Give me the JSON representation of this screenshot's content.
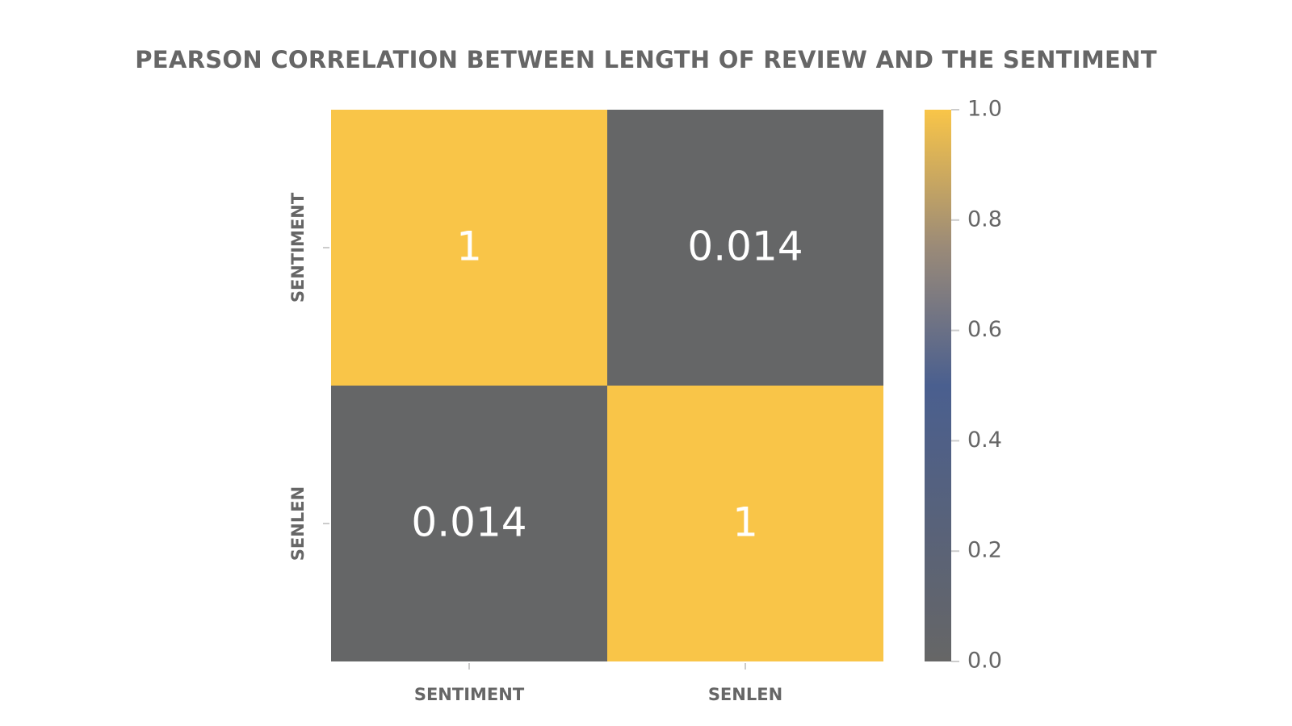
{
  "chart_data": {
    "type": "heatmap",
    "title": "PEARSON CORRELATION BETWEEN LENGTH OF REVIEW AND THE SENTIMENT",
    "x_categories": [
      "SENTIMENT",
      "SENLEN"
    ],
    "y_categories": [
      "SENTIMENT",
      "SENLEN"
    ],
    "values": [
      [
        1,
        0.014
      ],
      [
        0.014,
        1
      ]
    ],
    "cell_labels": [
      [
        "1",
        "0.014"
      ],
      [
        "0.014",
        "1"
      ]
    ],
    "colorbar": {
      "range": [
        0.0,
        1.0
      ],
      "ticks": [
        0.0,
        0.2,
        0.4,
        0.6,
        0.8,
        1.0
      ],
      "tick_labels": [
        "0.0",
        "0.2",
        "0.4",
        "0.6",
        "0.8",
        "1.0"
      ],
      "position": "right"
    },
    "colors": {
      "low": "#666666",
      "mid": "#4a5f8f",
      "high": "#f9c548",
      "text": "#666666",
      "cell_text": "#ffffff"
    }
  }
}
